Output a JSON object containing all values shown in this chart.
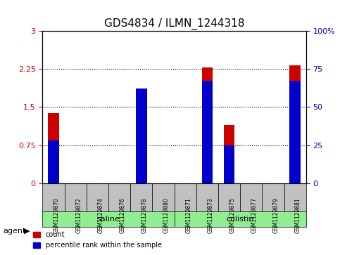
{
  "title": "GDS4834 / ILMN_1244318",
  "samples": [
    "GSM1129870",
    "GSM1129872",
    "GSM1129874",
    "GSM1129876",
    "GSM1129878",
    "GSM1129880",
    "GSM1129871",
    "GSM1129873",
    "GSM1129875",
    "GSM1129877",
    "GSM1129879",
    "GSM1129881"
  ],
  "count_values": [
    1.38,
    0.0,
    0.0,
    0.0,
    1.72,
    0.0,
    0.0,
    2.28,
    1.15,
    0.0,
    0.0,
    2.32
  ],
  "percentile_values": [
    0.28,
    0.0,
    0.0,
    0.0,
    0.62,
    0.0,
    0.0,
    0.67,
    0.25,
    0.0,
    0.0,
    0.67
  ],
  "groups": [
    {
      "label": "saline",
      "start": 0,
      "end": 6,
      "color": "#90EE90"
    },
    {
      "label": "colistin",
      "start": 6,
      "end": 12,
      "color": "#90EE90"
    }
  ],
  "group_row_label": "agent",
  "ylim_left": [
    0,
    3.0
  ],
  "ylim_right": [
    0,
    100
  ],
  "yticks_left": [
    0,
    0.75,
    1.5,
    2.25,
    3.0
  ],
  "yticks_right": [
    0,
    25,
    50,
    75,
    100
  ],
  "ytick_labels_left": [
    "0",
    "0.75",
    "1.5",
    "2.25",
    "3"
  ],
  "ytick_labels_right": [
    "0",
    "25",
    "50",
    "75",
    "100%"
  ],
  "bar_color": "#cc0000",
  "percentile_color": "#0000cc",
  "grid_color": "#000000",
  "sample_box_color": "#c0c0c0",
  "bg_color": "#ffffff",
  "bar_width": 0.5,
  "legend_items": [
    {
      "label": "count",
      "color": "#cc0000"
    },
    {
      "label": "percentile rank within the sample",
      "color": "#0000cc"
    }
  ]
}
